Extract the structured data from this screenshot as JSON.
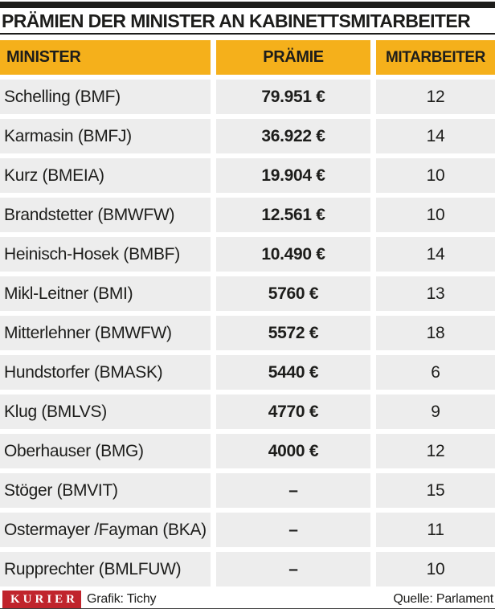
{
  "title": "PRÄMIEN DER MINISTER AN KABINETTSMITARBEITER",
  "table": {
    "columns": [
      {
        "label": "MINISTER"
      },
      {
        "label": "PRÄMIE"
      },
      {
        "label": "MITARBEITER"
      }
    ],
    "rows": [
      {
        "minister": "Schelling (BMF)",
        "praemie": "79.951 €",
        "mitarbeiter": "12"
      },
      {
        "minister": "Karmasin (BMFJ)",
        "praemie": "36.922 €",
        "mitarbeiter": "14"
      },
      {
        "minister": "Kurz (BMEIA)",
        "praemie": "19.904 €",
        "mitarbeiter": "10"
      },
      {
        "minister": "Brandstetter (BMWFW)",
        "praemie": "12.561 €",
        "mitarbeiter": "10"
      },
      {
        "minister": "Heinisch-Hosek (BMBF)",
        "praemie": "10.490 €",
        "mitarbeiter": "14"
      },
      {
        "minister": "Mikl-Leitner (BMI)",
        "praemie": "5760 €",
        "mitarbeiter": "13"
      },
      {
        "minister": "Mitterlehner (BMWFW)",
        "praemie": "5572 €",
        "mitarbeiter": "18"
      },
      {
        "minister": "Hundstorfer (BMASK)",
        "praemie": "5440 €",
        "mitarbeiter": "6"
      },
      {
        "minister": "Klug (BMLVS)",
        "praemie": "4770 €",
        "mitarbeiter": "9"
      },
      {
        "minister": "Oberhauser (BMG)",
        "praemie": "4000 €",
        "mitarbeiter": "12"
      },
      {
        "minister": "Stöger (BMVIT)",
        "praemie": "–",
        "mitarbeiter": "15"
      },
      {
        "minister": "Ostermayer /Fayman (BKA)",
        "praemie": "–",
        "mitarbeiter": "11"
      },
      {
        "minister": "Rupprechter (BMLFUW)",
        "praemie": "–",
        "mitarbeiter": "10"
      }
    ]
  },
  "footer": {
    "logo": "KURIER",
    "credit": "Grafik: Tichy",
    "source": "Quelle: Parlament"
  },
  "colors": {
    "accent_yellow": "#F5B01B",
    "row_gray": "#EDEDED",
    "brand_red": "#C0242C",
    "text_black": "#1D1D1B",
    "bottom_rule": "#3F3F3F"
  },
  "chart_data": {
    "type": "table",
    "title": "PRÄMIEN DER MINISTER AN KABINETTSMITARBEITER",
    "columns": [
      "MINISTER",
      "PRÄMIE",
      "MITARBEITER"
    ],
    "rows": [
      [
        "Schelling (BMF)",
        "79.951 €",
        12
      ],
      [
        "Karmasin (BMFJ)",
        "36.922 €",
        14
      ],
      [
        "Kurz (BMEIA)",
        "19.904 €",
        10
      ],
      [
        "Brandstetter (BMWFW)",
        "12.561 €",
        10
      ],
      [
        "Heinisch-Hosek (BMBF)",
        "10.490 €",
        14
      ],
      [
        "Mikl-Leitner (BMI)",
        "5760 €",
        13
      ],
      [
        "Mitterlehner (BMWFW)",
        "5572 €",
        18
      ],
      [
        "Hundstorfer (BMASK)",
        "5440 €",
        6
      ],
      [
        "Klug (BMLVS)",
        "4770 €",
        9
      ],
      [
        "Oberhauser (BMG)",
        "4000 €",
        12
      ],
      [
        "Stöger (BMVIT)",
        "–",
        15
      ],
      [
        "Ostermayer /Fayman (BKA)",
        "–",
        11
      ],
      [
        "Rupprechter (BMLFUW)",
        "–",
        10
      ]
    ],
    "praemie_values_eur": [
      79951,
      36922,
      19904,
      12561,
      10490,
      5760,
      5572,
      5440,
      4770,
      4000,
      null,
      null,
      null
    ],
    "mitarbeiter_values": [
      12,
      14,
      10,
      10,
      14,
      13,
      18,
      6,
      9,
      12,
      15,
      11,
      10
    ],
    "source": "Quelle: Parlament",
    "credit": "Grafik: Tichy"
  }
}
